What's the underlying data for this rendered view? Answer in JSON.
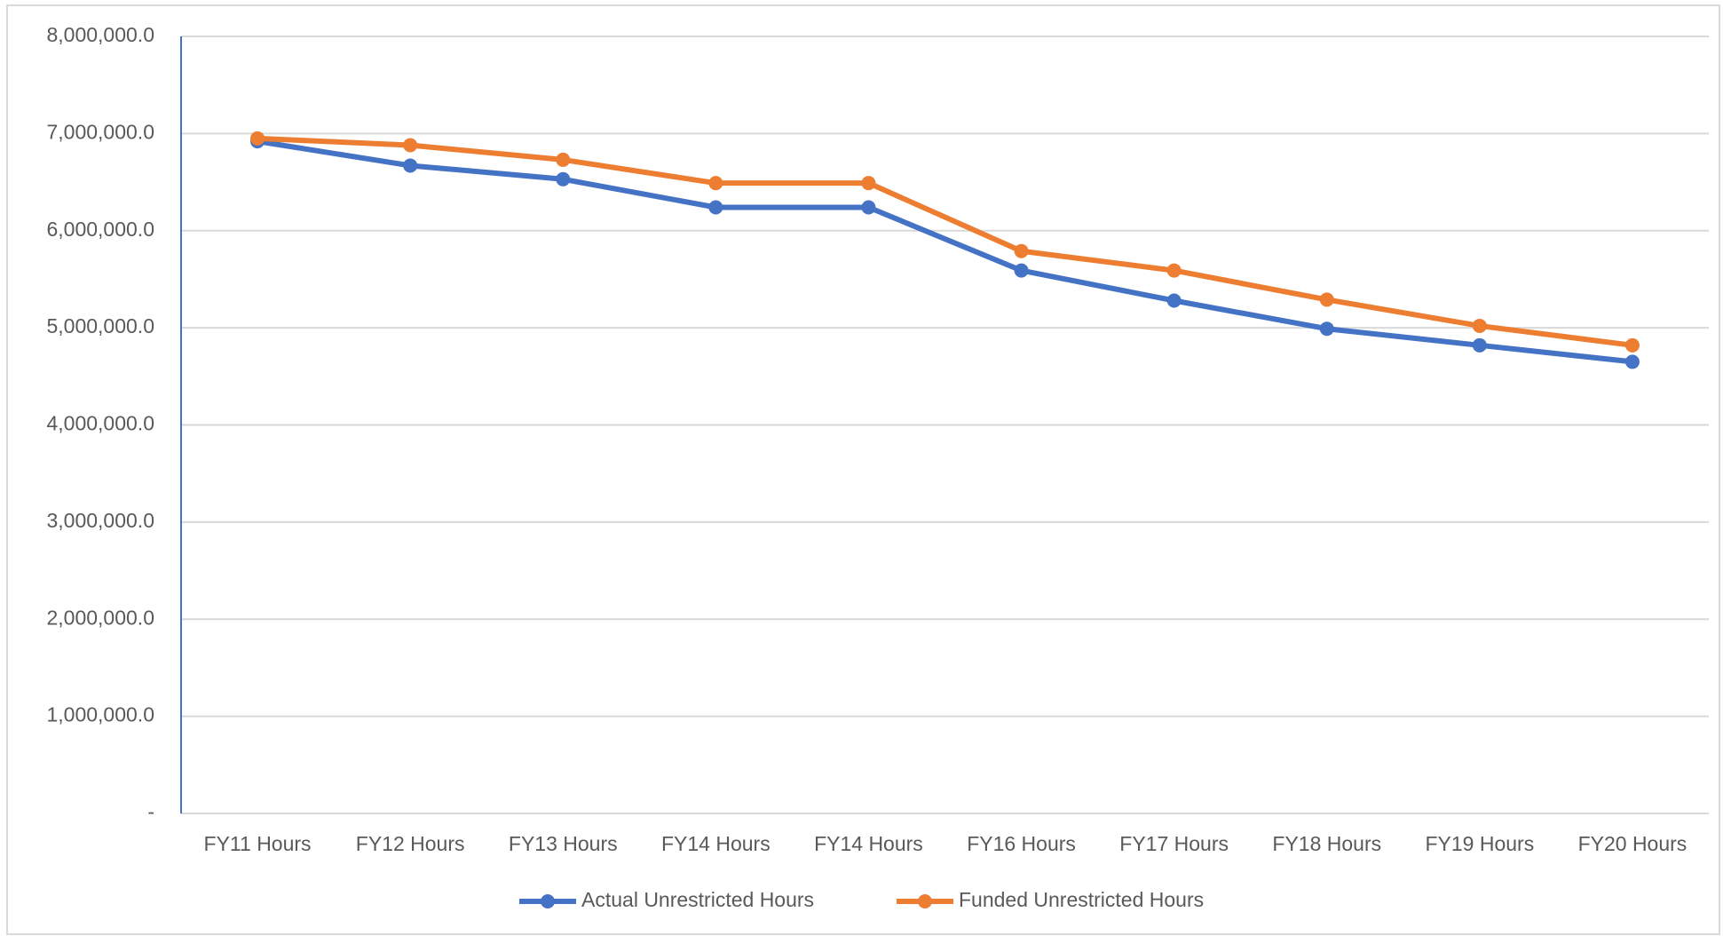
{
  "chart_data": {
    "type": "line",
    "categories": [
      "FY11 Hours",
      "FY12 Hours",
      "FY13 Hours",
      "FY14 Hours",
      "FY14 Hours",
      "FY16 Hours",
      "FY17 Hours",
      "FY18 Hours",
      "FY19 Hours",
      "FY20 Hours"
    ],
    "series": [
      {
        "name": "Actual Unrestricted Hours",
        "color": "#4472c4",
        "values": [
          6920000,
          6670000,
          6530000,
          6240000,
          6240000,
          5590000,
          5280000,
          4990000,
          4820000,
          4650000
        ]
      },
      {
        "name": "Funded Unrestricted Hours",
        "color": "#ed7d31",
        "values": [
          6950000,
          6880000,
          6730000,
          6490000,
          6490000,
          5790000,
          5590000,
          5290000,
          5020000,
          4820000
        ]
      }
    ],
    "ylim": [
      0,
      8000000
    ],
    "yticks": [
      {
        "value": 0,
        "label": "-"
      },
      {
        "value": 1000000,
        "label": "1,000,000.0"
      },
      {
        "value": 2000000,
        "label": "2,000,000.0"
      },
      {
        "value": 3000000,
        "label": "3,000,000.0"
      },
      {
        "value": 4000000,
        "label": "4,000,000.0"
      },
      {
        "value": 5000000,
        "label": "5,000,000.0"
      },
      {
        "value": 6000000,
        "label": "6,000,000.0"
      },
      {
        "value": 7000000,
        "label": "7,000,000.0"
      },
      {
        "value": 8000000,
        "label": "8,000,000.0"
      }
    ],
    "grid": true,
    "legend": "bottom"
  }
}
